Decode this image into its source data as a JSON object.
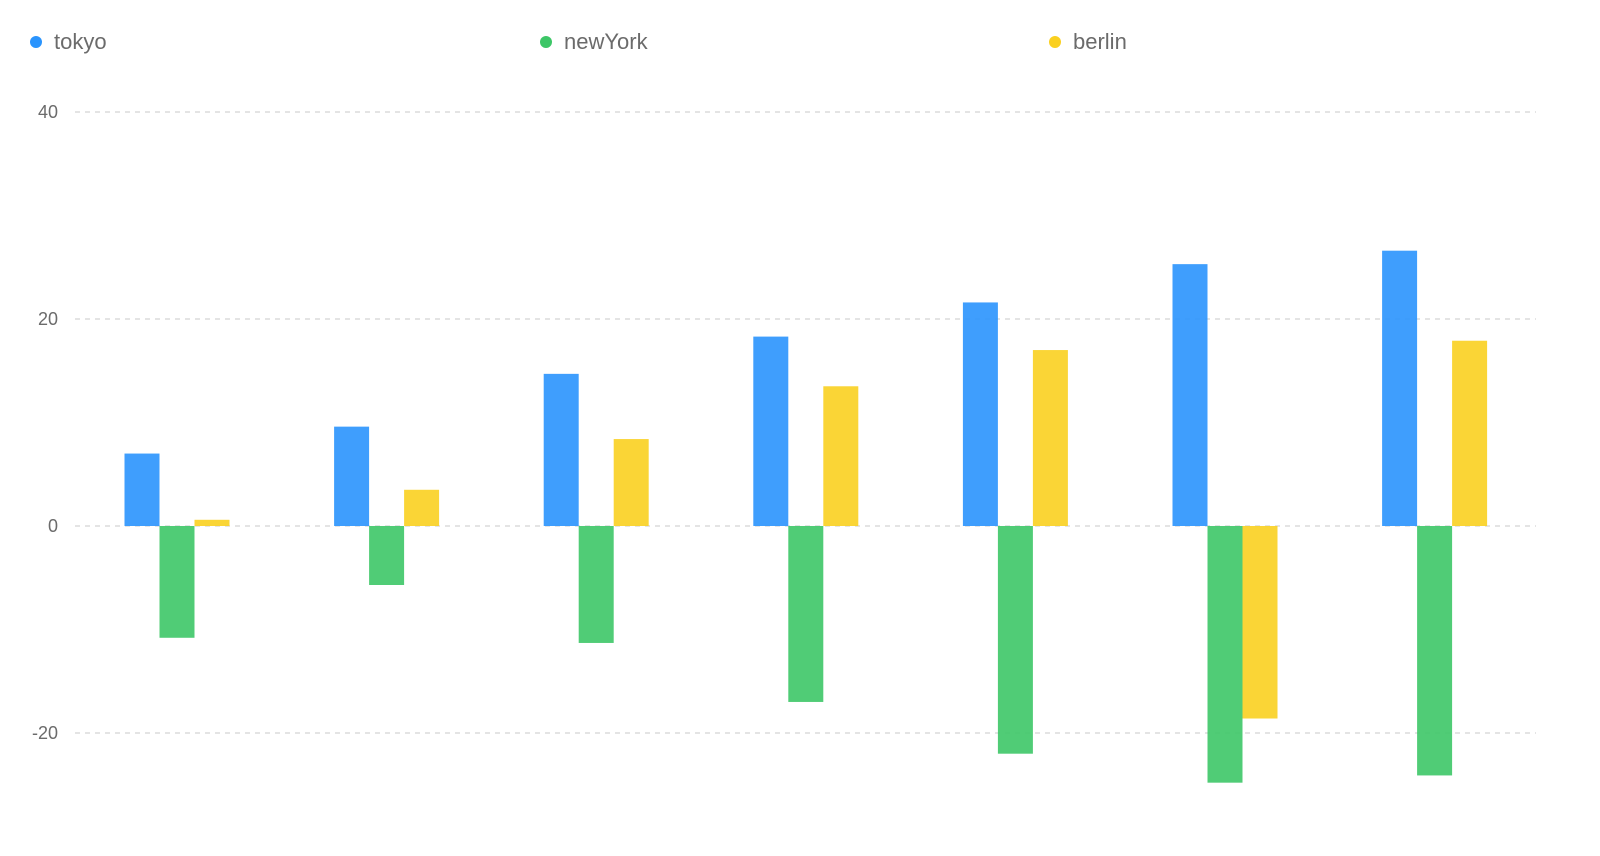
{
  "chart_data": {
    "type": "bar",
    "categories": [
      "",
      "",
      "",
      "",
      "",
      "",
      ""
    ],
    "series": [
      {
        "name": "tokyo",
        "color": "#2a94fd",
        "values": [
          7.0,
          9.6,
          14.7,
          18.3,
          21.6,
          25.3,
          26.6
        ]
      },
      {
        "name": "newYork",
        "color": "#3dc667",
        "values": [
          -10.8,
          -5.7,
          -11.3,
          -17.0,
          -22.0,
          -24.8,
          -24.1
        ]
      },
      {
        "name": "berlin",
        "color": "#fad020",
        "values": [
          0.6,
          3.5,
          8.4,
          13.5,
          17.0,
          -18.6,
          17.9
        ]
      }
    ],
    "ylim": [
      -30,
      40
    ],
    "yticks": [
      40,
      20,
      0,
      -20
    ],
    "ytick_labels": [
      "40",
      "20",
      "0",
      "-20"
    ],
    "grid": true,
    "legend_position": "top"
  }
}
